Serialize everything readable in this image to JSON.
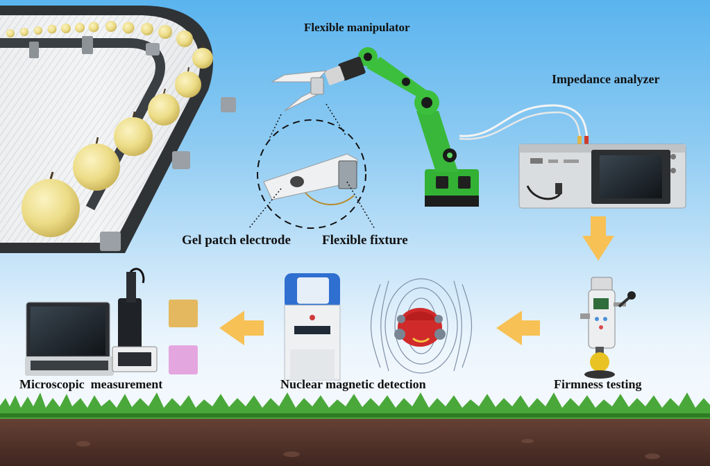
{
  "labels": {
    "flexible_manipulator": "Flexible manipulator",
    "impedance_analyzer": "Impedance analyzer",
    "gel_patch_electrode": "Gel patch electrode",
    "flexible_fixture": "Flexible fixture",
    "microscopic_measurement": "Microscopic  measurement",
    "nuclear_magnetic_detection": "Nuclear magnetic detection",
    "firmness_testing": "Firmness testing"
  },
  "colors": {
    "sky_top": "#5ab4ee",
    "sky_bottom": "#f2f8fd",
    "arrow": "#f7c155",
    "robot_arm": "#3cb53c",
    "grass": "#4aa83a",
    "soil": "#5e3a30",
    "pear": "#ecdc86"
  },
  "icons": {
    "conveyor": "conveyor-belt-with-pears",
    "manipulator": "robot-arm-icon",
    "analyzer": "impedance-analyzer-device",
    "nmr": "nmr-analyzer-device",
    "microscope": "microscope-workstation",
    "firmness": "firmness-tester-device"
  }
}
